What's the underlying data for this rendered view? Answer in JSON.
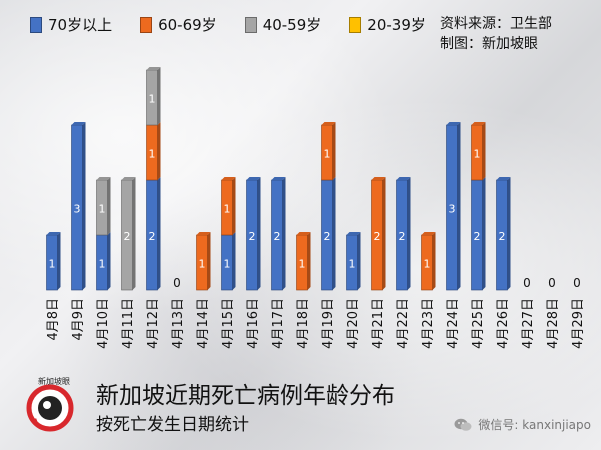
{
  "legend": [
    {
      "label": "70岁以上",
      "color": "#4472c4"
    },
    {
      "label": "60-69岁",
      "color": "#ed6a1f"
    },
    {
      "label": "40-59岁",
      "color": "#a5a5a5"
    },
    {
      "label": "20-39岁",
      "color": "#ffc000"
    }
  ],
  "source": {
    "line1": "资料来源：卫生部",
    "line2": "制图：新加坡眼"
  },
  "title": "新加坡近期死亡病例年龄分布",
  "subtitle": "按死亡发生日期统计",
  "logo": {
    "text": "新加坡眼"
  },
  "wechat": {
    "label": "微信号: kanxinjiapo"
  },
  "chart_data": {
    "type": "bar",
    "stacked": true,
    "categories": [
      "4月8日",
      "4月9日",
      "4月10日",
      "4月11日",
      "4月12日",
      "4月13日",
      "4月14日",
      "4月15日",
      "4月16日",
      "4月17日",
      "4月18日",
      "4月19日",
      "4月20日",
      "4月21日",
      "4月22日",
      "4月23日",
      "4月24日",
      "4月25日",
      "4月26日",
      "4月27日",
      "4月28日",
      "4月29日"
    ],
    "series": [
      {
        "name": "70岁以上",
        "color": "#4472c4",
        "values": [
          1,
          3,
          1,
          0,
          2,
          0,
          0,
          1,
          2,
          2,
          0,
          2,
          1,
          0,
          2,
          0,
          3,
          2,
          2,
          0,
          0,
          0
        ]
      },
      {
        "name": "60-69岁",
        "color": "#ed6a1f",
        "values": [
          0,
          0,
          0,
          0,
          1,
          0,
          1,
          1,
          0,
          0,
          1,
          1,
          0,
          2,
          0,
          1,
          0,
          1,
          0,
          0,
          0,
          0
        ]
      },
      {
        "name": "40-59岁",
        "color": "#a5a5a5",
        "values": [
          0,
          0,
          1,
          2,
          1,
          0,
          0,
          0,
          0,
          0,
          0,
          0,
          0,
          0,
          0,
          0,
          0,
          0,
          0,
          0,
          0,
          0
        ]
      },
      {
        "name": "20-39岁",
        "color": "#ffc000",
        "values": [
          0,
          0,
          0,
          0,
          0,
          0,
          0,
          0,
          0,
          0,
          0,
          0,
          0,
          0,
          0,
          0,
          0,
          0,
          0,
          0,
          0,
          0
        ]
      }
    ],
    "ylim": [
      0,
      4
    ],
    "grid": false,
    "legend_position": "top"
  }
}
